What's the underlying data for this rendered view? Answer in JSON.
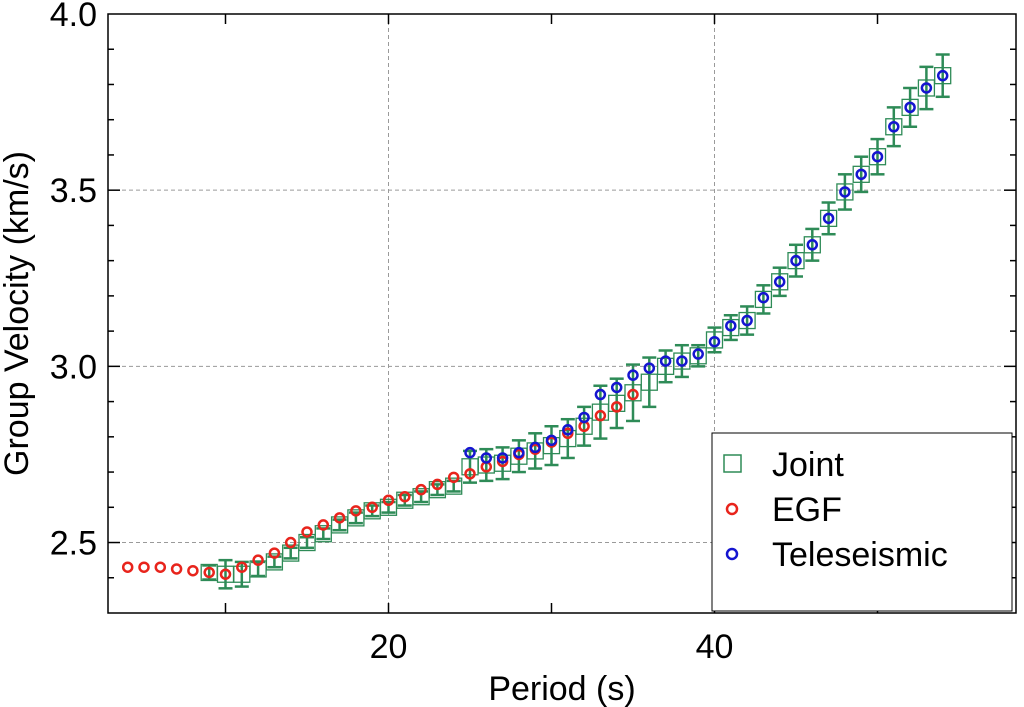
{
  "chart_data": {
    "type": "scatter",
    "xlabel": "Period (s)",
    "ylabel": "Group Velocity (km/s)",
    "xlim": [
      3,
      58
    ],
    "ylim": [
      2.3,
      4.0
    ],
    "xticks": [
      20,
      40
    ],
    "yticks": [
      2.5,
      3.0,
      3.5,
      4.0
    ],
    "xtick_labels": [
      "20",
      "40"
    ],
    "ytick_labels": [
      "2.5",
      "3.0",
      "3.5",
      "4.0"
    ],
    "x_minor_ticks": [
      10,
      30,
      50
    ],
    "grid": true,
    "legend_position": "bottom-right",
    "colors": {
      "joint": "#2e8b57",
      "egf": "#e8241c",
      "tele": "#1515d0"
    },
    "series": [
      {
        "name": "Joint",
        "marker": "square",
        "x": [
          9,
          10,
          11,
          12,
          13,
          14,
          15,
          16,
          17,
          18,
          19,
          20,
          21,
          22,
          23,
          24,
          25,
          26,
          27,
          28,
          29,
          30,
          31,
          32,
          33,
          34,
          35,
          36,
          37,
          38,
          39,
          40,
          41,
          42,
          43,
          44,
          45,
          46,
          47,
          48,
          49,
          50,
          51,
          52,
          53,
          54
        ],
        "y": [
          2.415,
          2.41,
          2.41,
          2.425,
          2.445,
          2.47,
          2.5,
          2.525,
          2.55,
          2.57,
          2.59,
          2.6,
          2.62,
          2.63,
          2.65,
          2.66,
          2.715,
          2.72,
          2.725,
          2.745,
          2.76,
          2.775,
          2.795,
          2.83,
          2.87,
          2.895,
          2.925,
          2.955,
          3.0,
          3.015,
          3.03,
          3.075,
          3.11,
          3.13,
          3.19,
          3.24,
          3.3,
          3.345,
          3.42,
          3.495,
          3.545,
          3.595,
          3.68,
          3.735,
          3.79,
          3.825
        ],
        "err": [
          0.02,
          0.04,
          0.035,
          0.02,
          0.015,
          0.015,
          0.015,
          0.015,
          0.015,
          0.015,
          0.015,
          0.015,
          0.015,
          0.015,
          0.015,
          0.015,
          0.045,
          0.045,
          0.045,
          0.045,
          0.05,
          0.055,
          0.055,
          0.055,
          0.075,
          0.07,
          0.08,
          0.07,
          0.045,
          0.045,
          0.03,
          0.035,
          0.035,
          0.04,
          0.04,
          0.04,
          0.045,
          0.045,
          0.045,
          0.05,
          0.05,
          0.05,
          0.055,
          0.055,
          0.06,
          0.06
        ]
      },
      {
        "name": "EGF",
        "marker": "circle",
        "x": [
          4,
          5,
          6,
          7,
          8,
          9,
          10,
          11,
          12,
          13,
          14,
          15,
          16,
          17,
          18,
          19,
          20,
          21,
          22,
          23,
          24,
          25,
          26,
          27,
          28,
          29,
          30,
          31,
          32,
          33,
          34,
          35
        ],
        "y": [
          2.43,
          2.43,
          2.43,
          2.425,
          2.42,
          2.415,
          2.41,
          2.43,
          2.45,
          2.47,
          2.5,
          2.53,
          2.55,
          2.57,
          2.59,
          2.6,
          2.62,
          2.63,
          2.65,
          2.665,
          2.685,
          2.695,
          2.715,
          2.73,
          2.75,
          2.765,
          2.785,
          2.81,
          2.83,
          2.86,
          2.885,
          2.92
        ]
      },
      {
        "name": "Teleseismic",
        "marker": "circle",
        "x": [
          25,
          26,
          27,
          28,
          29,
          30,
          31,
          32,
          33,
          34,
          35,
          36,
          37,
          38,
          39,
          40,
          41,
          42,
          43,
          44,
          45,
          46,
          47,
          48,
          49,
          50,
          51,
          52,
          53,
          54
        ],
        "y": [
          2.755,
          2.74,
          2.74,
          2.755,
          2.77,
          2.79,
          2.82,
          2.855,
          2.92,
          2.94,
          2.975,
          2.995,
          3.015,
          3.015,
          3.035,
          3.07,
          3.115,
          3.13,
          3.195,
          3.24,
          3.3,
          3.345,
          3.42,
          3.495,
          3.545,
          3.595,
          3.68,
          3.735,
          3.79,
          3.825
        ]
      }
    ]
  }
}
